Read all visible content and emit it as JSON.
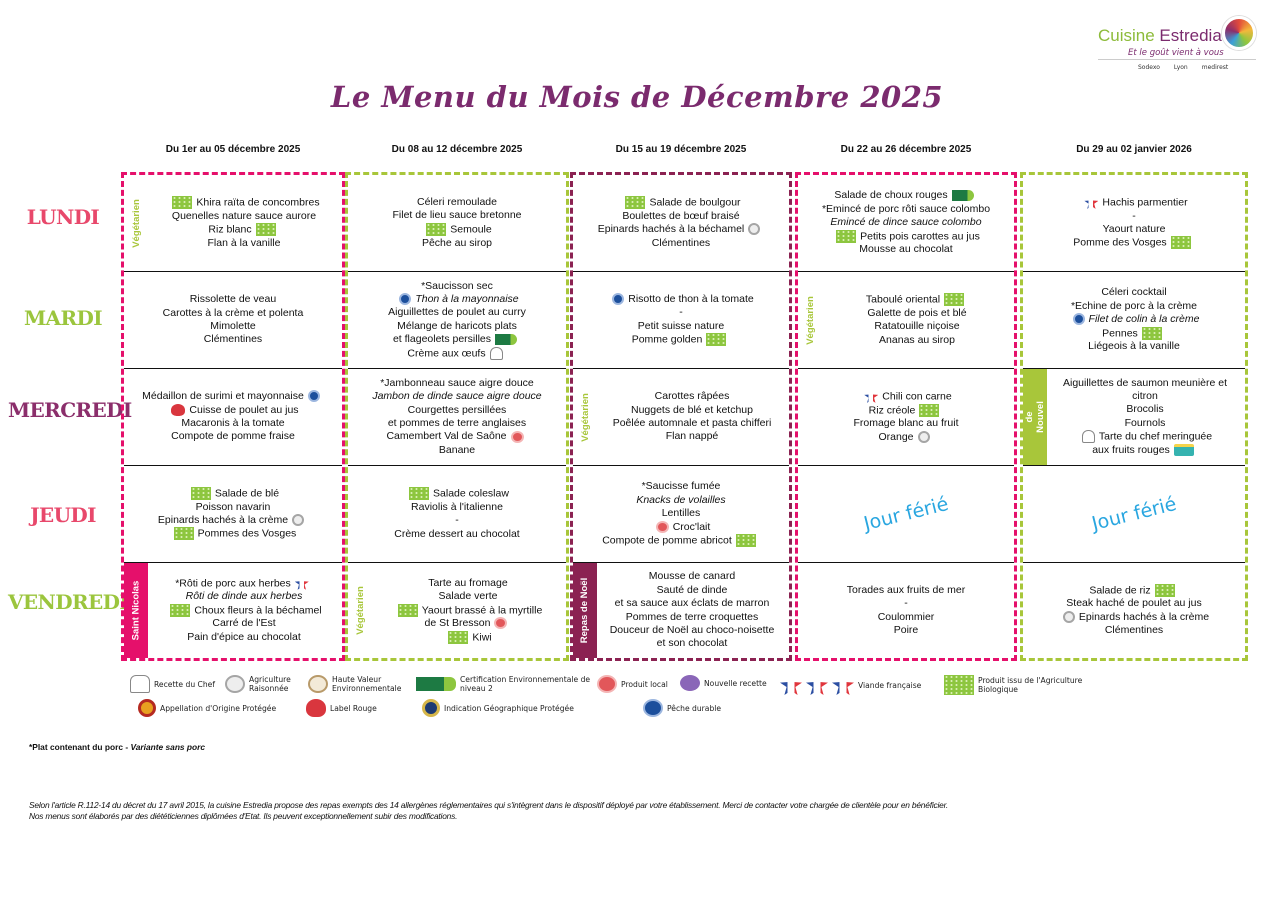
{
  "logo": {
    "brand_a": "Cuisine ",
    "brand_b": "Estredia",
    "tagline": "Et le goût vient à vous",
    "partners": [
      "Sodexo",
      "Lyon",
      "medirest"
    ]
  },
  "title": "Le Menu du Mois de Décembre 2025",
  "colors": {
    "pink": "#e5106b",
    "lime": "#a8c63a",
    "plum": "#8b2252",
    "purple": "#7b2b6e",
    "holiday": "#29a6e0"
  },
  "days": [
    {
      "label": "LUNDI",
      "color": "#e8486b"
    },
    {
      "label": "MARDI",
      "color": "#9bc53d"
    },
    {
      "label": "MERCREDI",
      "color": "#8b2e6b"
    },
    {
      "label": "JEUDI",
      "color": "#e8486b"
    },
    {
      "label": "VENDREDI",
      "color": "#9bc53d"
    }
  ],
  "weeks": [
    {
      "header": "Du 1er au 05 décembre 2025",
      "color": "#e5106b",
      "days": [
        {
          "tag": "Végétarien",
          "tagType": "plain",
          "lines": [
            {
              "t": "Khira raïta de concombres",
              "pre": "bio"
            },
            {
              "t": "Quenelles nature sauce aurore"
            },
            {
              "t": "Riz blanc",
              "post": "bio"
            },
            {
              "t": "Flan à la vanille"
            }
          ]
        },
        {
          "lines": [
            {
              "t": "Rissolette de veau"
            },
            {
              "t": "Carottes à la crème et polenta"
            },
            {
              "t": "Mimolette"
            },
            {
              "t": "Clémentines"
            }
          ]
        },
        {
          "lines": [
            {
              "t": "Médaillon de surimi et mayonnaise",
              "post": "msc"
            },
            {
              "t": "Cuisse de poulet au jus",
              "pre": "lr"
            },
            {
              "t": "Macaronis à la tomate"
            },
            {
              "t": "Compote de pomme fraise"
            }
          ]
        },
        {
          "lines": [
            {
              "t": "Salade de blé",
              "pre": "bio"
            },
            {
              "t": "Poisson navarin"
            },
            {
              "t": "Epinards hachés à la crème",
              "post": "ar"
            },
            {
              "t": "Pommes des Vosges",
              "pre": "bio"
            }
          ]
        },
        {
          "tag": "Saint Nicolas",
          "tagType": "fill",
          "tagColor": "#e5106b",
          "lines": [
            {
              "t": "*Rôti de porc aux herbes",
              "post": "vf"
            },
            {
              "t": "Rôti de dinde aux herbes",
              "i": true
            },
            {
              "t": "Choux fleurs à la béchamel",
              "pre": "bio"
            },
            {
              "t": "Carré de l'Est"
            },
            {
              "t": "Pain d'épice au chocolat"
            }
          ]
        }
      ]
    },
    {
      "header": "Du 08 au 12 décembre 2025",
      "color": "#a8c63a",
      "days": [
        {
          "lines": [
            {
              "t": "Céleri remoulade"
            },
            {
              "t": "Filet de lieu sauce bretonne"
            },
            {
              "t": "Semoule",
              "pre": "bio"
            },
            {
              "t": "Pêche au sirop"
            }
          ]
        },
        {
          "lines": [
            {
              "t": "*Saucisson sec"
            },
            {
              "t": "Thon à la mayonnaise",
              "i": true,
              "pre": "msc"
            },
            {
              "t": "Aiguillettes de poulet au curry"
            },
            {
              "t": "Mélange de haricots plats"
            },
            {
              "t": "et flageolets persilles",
              "post": "hve2"
            },
            {
              "t": "Crème aux œufs",
              "post": "chef"
            }
          ]
        },
        {
          "lines": [
            {
              "t": "*Jambonneau sauce aigre douce"
            },
            {
              "t": "Jambon de dinde sauce aigre douce",
              "i": true
            },
            {
              "t": "Courgettes persillées"
            },
            {
              "t": "et pommes de terre anglaises"
            },
            {
              "t": "Camembert Val de Saône",
              "post": "local"
            },
            {
              "t": "Banane"
            }
          ]
        },
        {
          "lines": [
            {
              "t": "Salade coleslaw",
              "pre": "bio"
            },
            {
              "t": "Raviolis à l'italienne"
            },
            {
              "t": "-"
            },
            {
              "t": "Crème dessert au chocolat"
            }
          ]
        },
        {
          "tag": "Végétarien",
          "tagType": "plain",
          "lines": [
            {
              "t": "Tarte au fromage"
            },
            {
              "t": "Salade verte"
            },
            {
              "t": "Yaourt brassé à la myrtille",
              "pre": "bio"
            },
            {
              "t": "de St Bresson",
              "post": "local"
            },
            {
              "t": "Kiwi",
              "pre": "bio"
            }
          ]
        }
      ]
    },
    {
      "header": "Du 15 au 19 décembre 2025",
      "color": "#8b2252",
      "days": [
        {
          "lines": [
            {
              "t": "Salade de boulgour",
              "pre": "bio"
            },
            {
              "t": "Boulettes de bœuf braisé"
            },
            {
              "t": "Epinards hachés à la béchamel",
              "post": "ar"
            },
            {
              "t": "Clémentines"
            }
          ]
        },
        {
          "lines": [
            {
              "t": "Risotto de thon à la tomate",
              "pre": "msc"
            },
            {
              "t": "-"
            },
            {
              "t": "Petit suisse nature"
            },
            {
              "t": "Pomme golden",
              "post": "bio"
            }
          ]
        },
        {
          "tag": "Végétarien",
          "tagType": "plain",
          "lines": [
            {
              "t": "Carottes râpées"
            },
            {
              "t": "Nuggets de blé et ketchup"
            },
            {
              "t": "Poêlée automnale et pasta chifferi"
            },
            {
              "t": "Flan nappé"
            }
          ]
        },
        {
          "lines": [
            {
              "t": "*Saucisse fumée"
            },
            {
              "t": "Knacks de volailles",
              "i": true
            },
            {
              "t": "Lentilles"
            },
            {
              "t": "Croc'lait",
              "pre": "local"
            },
            {
              "t": "Compote de pomme abricot",
              "post": "bio"
            }
          ]
        },
        {
          "tag": "Repas de Noël",
          "tagType": "fill",
          "tagColor": "#8b2252",
          "lines": [
            {
              "t": "Mousse de canard"
            },
            {
              "t": "Sauté de dinde"
            },
            {
              "t": "et sa sauce aux éclats de marron"
            },
            {
              "t": "Pommes de terre croquettes"
            },
            {
              "t": "Douceur de Noël au choco-noisette"
            },
            {
              "t": "et son chocolat"
            }
          ]
        }
      ]
    },
    {
      "header": "Du 22 au 26 décembre 2025",
      "color": "#e5106b",
      "days": [
        {
          "lines": [
            {
              "t": "Salade de choux rouges",
              "post": "hve2"
            },
            {
              "t": "*Emincé de porc rôti sauce colombo"
            },
            {
              "t": "Emincé de dince sauce colombo",
              "i": true
            },
            {
              "t": "Petits pois carottes au jus",
              "pre": "bio"
            },
            {
              "t": "Mousse au chocolat"
            }
          ]
        },
        {
          "tag": "Végétarien",
          "tagType": "plain",
          "lines": [
            {
              "t": "Taboulé oriental",
              "post": "bio"
            },
            {
              "t": "Galette de pois et blé"
            },
            {
              "t": "Ratatouille niçoise"
            },
            {
              "t": "Ananas au sirop"
            }
          ]
        },
        {
          "lines": [
            {
              "t": "Chili con carne",
              "pre": "vf"
            },
            {
              "t": "Riz créole",
              "post": "bio"
            },
            {
              "t": "Fromage blanc au fruit"
            },
            {
              "t": "Orange",
              "post": "ar"
            }
          ]
        },
        {
          "holiday": "Jour férié"
        },
        {
          "lines": [
            {
              "t": "Torades aux fruits de mer"
            },
            {
              "t": "-"
            },
            {
              "t": "Coulommier"
            },
            {
              "t": "Poire"
            }
          ]
        }
      ]
    },
    {
      "header": "Du 29 au 02 janvier 2026",
      "color": "#a8c63a",
      "days": [
        {
          "lines": [
            {
              "t": "Hachis parmentier",
              "pre": "vf"
            },
            {
              "t": "-"
            },
            {
              "t": "Yaourt nature"
            },
            {
              "t": "Pomme des Vosges",
              "post": "bio"
            }
          ]
        },
        {
          "lines": [
            {
              "t": "Céleri cocktail"
            },
            {
              "t": "*Echine de porc à la crème"
            },
            {
              "t": "Filet de colin à la crème",
              "i": true,
              "pre": "msc"
            },
            {
              "t": "Pennes",
              "post": "bio"
            },
            {
              "t": "Liégeois à la vanille"
            }
          ]
        },
        {
          "tag": "Repas de Nouvel an",
          "tagType": "fill",
          "tagColor": "#a8c63a",
          "lines": [
            {
              "t": "Aiguillettes de saumon meunière et citron"
            },
            {
              "t": "Brocolis"
            },
            {
              "t": "Fournols"
            },
            {
              "t": "Tarte du chef meringuée",
              "pre": "chef"
            },
            {
              "t": "aux fruits rouges",
              "post": "cake"
            }
          ]
        },
        {
          "holiday": "Jour férié"
        },
        {
          "lines": [
            {
              "t": "Salade de riz",
              "post": "bio"
            },
            {
              "t": "Steak haché de poulet au jus"
            },
            {
              "t": "Epinards hachés à la crème",
              "pre": "ar"
            },
            {
              "t": "Clémentines"
            }
          ]
        }
      ]
    }
  ],
  "legend": [
    {
      "icon": "chef",
      "label": "Recette du Chef"
    },
    {
      "icon": "ar",
      "label": "Agriculture Raisonnée"
    },
    {
      "icon": "hve",
      "label": "Haute Valeur Environnementale"
    },
    {
      "icon": "hve2",
      "label": "Certification Environnementale de niveau 2"
    },
    {
      "icon": "local",
      "label": "Produit local"
    },
    {
      "icon": "nouv",
      "label": "Nouvelle recette"
    },
    {
      "icon": "vf",
      "label": "Viande française"
    },
    {
      "icon": "bio",
      "label": "Produit issu de l'Agriculture Biologique"
    },
    {
      "icon": "aop",
      "label": "Appellation d'Origine Protégée"
    },
    {
      "icon": "lr",
      "label": "Label Rouge"
    },
    {
      "icon": "igp",
      "label": "Indication Géographique Protégée"
    },
    {
      "icon": "msc",
      "label": "Pêche durable"
    }
  ],
  "note": {
    "pork": "*Plat contenant du porc  - ",
    "variant": "Variante sans porc"
  },
  "footer": [
    "Selon l'article R.112-14 du décret du 17 avril 2015, la cuisine Estredia propose des repas exempts des 14 allergènes réglementaires qui s'intègrent dans le dispositif déployé par votre établissement. Merci de contacter votre chargée de clientèle pour en bénéficier.",
    "Nos menus sont élaborés par des diététiciennes diplômées d'Etat. Ils peuvent exceptionnellement subir des modifications."
  ]
}
